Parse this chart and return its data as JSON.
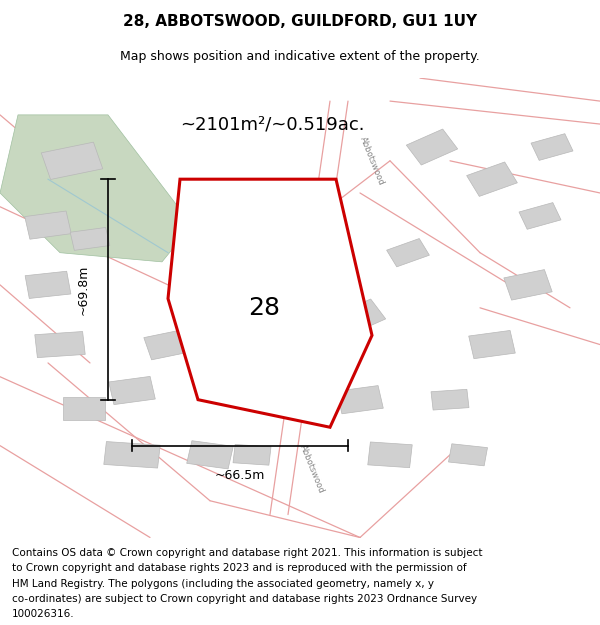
{
  "title": "28, ABBOTSWOOD, GUILDFORD, GU1 1UY",
  "subtitle": "Map shows position and indicative extent of the property.",
  "footer_lines": [
    "Contains OS data © Crown copyright and database right 2021. This information is subject",
    "to Crown copyright and database rights 2023 and is reproduced with the permission of",
    "HM Land Registry. The polygons (including the associated geometry, namely x, y",
    "co-ordinates) are subject to Crown copyright and database rights 2023 Ordnance Survey",
    "100026316."
  ],
  "area_text": "~2101m²/~0.519ac.",
  "label_number": "28",
  "dim_height": "~69.8m",
  "dim_width": "~66.5m",
  "property_color": "#cc0000",
  "road_color": "#e8a0a0",
  "building_color": "#d0d0d0",
  "building_edge": "#b8b8b8",
  "green_color": "#c8d8c0",
  "green_edge": "#a0c0a0",
  "stream_color": "#a0c8d0",
  "street_label": "Abbotswood",
  "title_fontsize": 11,
  "subtitle_fontsize": 9,
  "footer_fontsize": 7.5,
  "area_fontsize": 13,
  "label_fontsize": 18,
  "dim_fontsize": 9
}
